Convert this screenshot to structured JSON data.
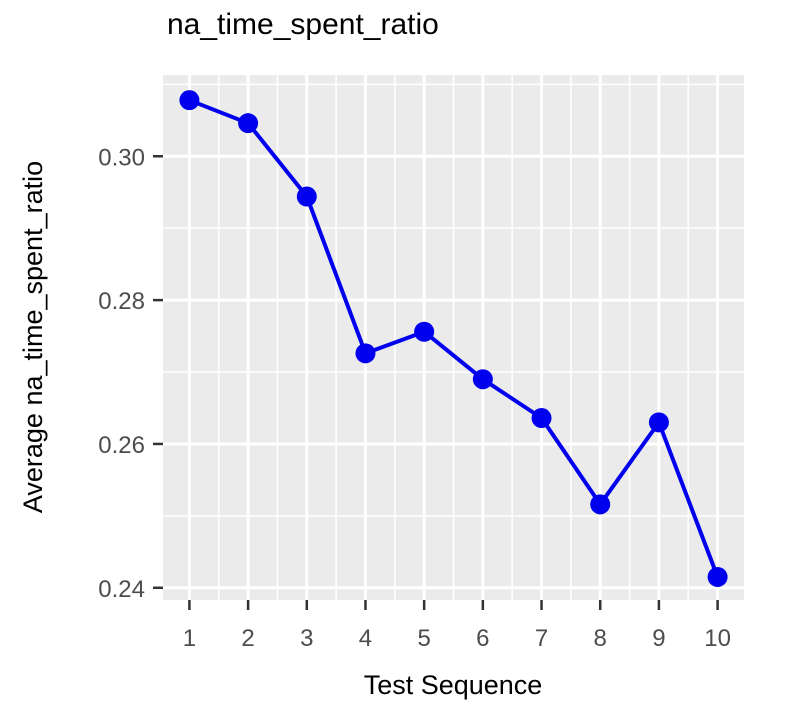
{
  "chart_data": {
    "type": "line",
    "title": "na_time_spent_ratio",
    "xlabel": "Test Sequence",
    "ylabel": "Average na_time_spent_ratio",
    "x": [
      1,
      2,
      3,
      4,
      5,
      6,
      7,
      8,
      9,
      10
    ],
    "x_tick_labels": [
      "1",
      "2",
      "3",
      "4",
      "5",
      "6",
      "7",
      "8",
      "9",
      "10"
    ],
    "y_tick_values": [
      0.24,
      0.26,
      0.28,
      0.3
    ],
    "y_tick_labels": [
      "0.24",
      "0.26",
      "0.28",
      "0.30"
    ],
    "series": [
      {
        "values": [
          0.3078,
          0.3046,
          0.2944,
          0.2726,
          0.2756,
          0.269,
          0.2636,
          0.2516,
          0.263,
          0.2415
        ],
        "color": "#0000ee"
      }
    ],
    "xlim": [
      0.55,
      10.45
    ],
    "ylim": [
      0.2383,
      0.3113
    ],
    "grid": true,
    "panel_background": "#ebebeb",
    "grid_color": "#ffffff"
  }
}
